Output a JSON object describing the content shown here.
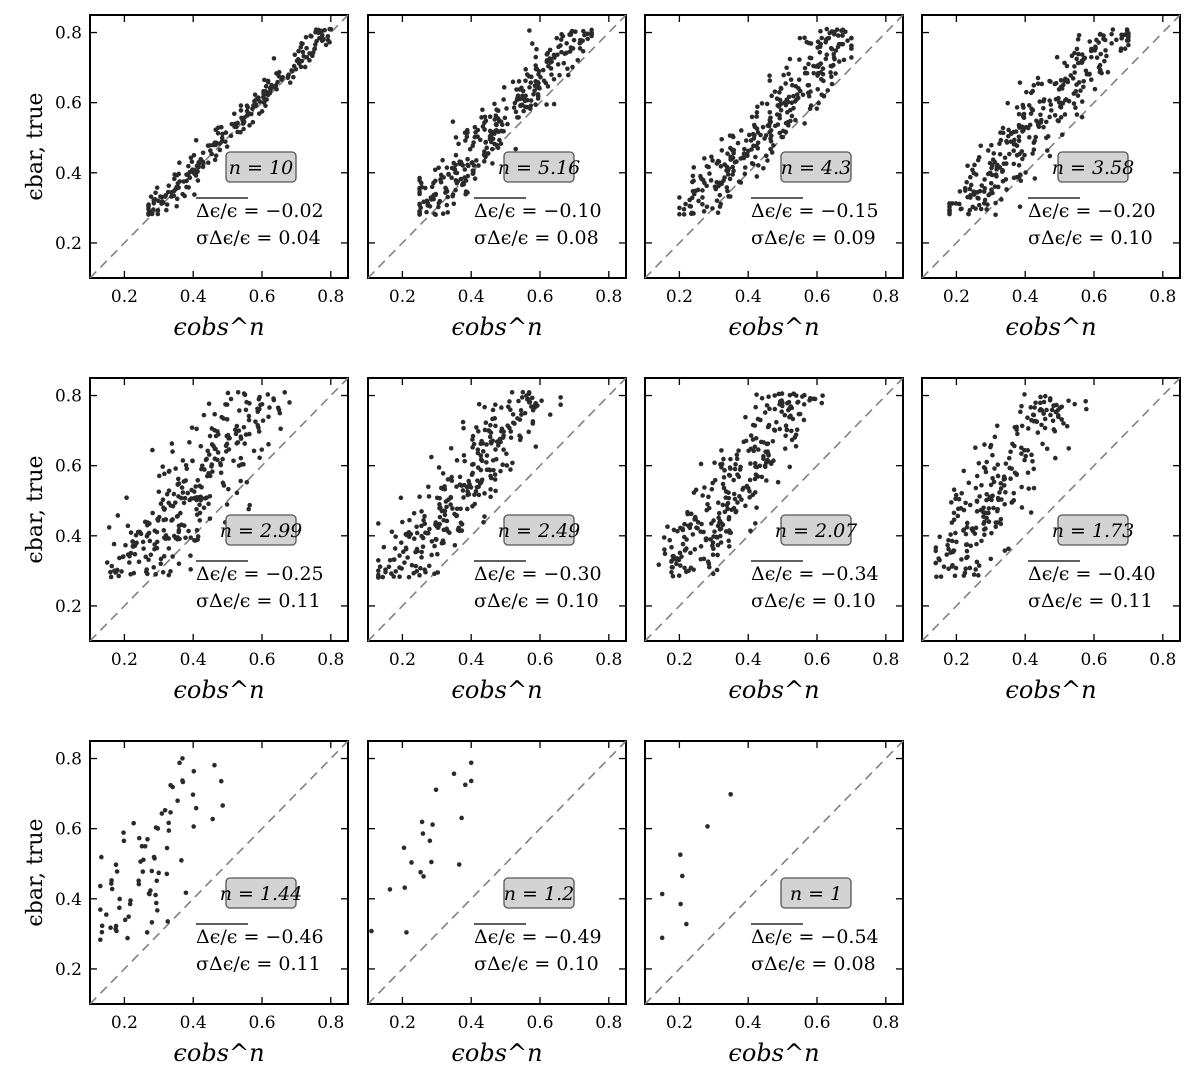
{
  "figure": {
    "y_axis_label": "ϵbar, true",
    "x_axis_label": "ϵobs^n",
    "n_label_prefix": "n =",
    "mean_label": "Δϵ/ϵ =",
    "sigma_label": "σΔϵ/ϵ =",
    "colors": {
      "points": "#2a2a2a",
      "diagonal": "#808080",
      "label_box": "#d3d3d3",
      "label_box_border": "#555555"
    }
  },
  "chart_data": [
    {
      "type": "scatter",
      "n": "10",
      "mean": "−0.02",
      "sigma": "0.04",
      "xlim": [
        0.1,
        0.85
      ],
      "ylim": [
        0.1,
        0.85
      ],
      "xticks": [
        0.2,
        0.4,
        0.6,
        0.8
      ],
      "yticks": [
        0.2,
        0.4,
        0.6,
        0.8
      ],
      "npoints": 230,
      "bias": -0.02,
      "scatter": 0.04,
      "xrange": [
        0.27,
        0.8
      ]
    },
    {
      "type": "scatter",
      "n": "5.16",
      "mean": "−0.10",
      "sigma": "0.08",
      "xlim": [
        0.1,
        0.85
      ],
      "ylim": [
        0.1,
        0.85
      ],
      "xticks": [
        0.2,
        0.4,
        0.6,
        0.8
      ],
      "yticks": [
        0.2,
        0.4,
        0.6,
        0.8
      ],
      "npoints": 300,
      "bias": -0.1,
      "scatter": 0.08,
      "xrange": [
        0.25,
        0.75
      ]
    },
    {
      "type": "scatter",
      "n": "4.3",
      "mean": "−0.15",
      "sigma": "0.09",
      "xlim": [
        0.1,
        0.85
      ],
      "ylim": [
        0.1,
        0.85
      ],
      "xticks": [
        0.2,
        0.4,
        0.6,
        0.8
      ],
      "yticks": [
        0.2,
        0.4,
        0.6,
        0.8
      ],
      "npoints": 300,
      "bias": -0.15,
      "scatter": 0.09,
      "xrange": [
        0.2,
        0.7
      ]
    },
    {
      "type": "scatter",
      "n": "3.58",
      "mean": "−0.20",
      "sigma": "0.10",
      "xlim": [
        0.1,
        0.85
      ],
      "ylim": [
        0.1,
        0.85
      ],
      "xticks": [
        0.2,
        0.4,
        0.6,
        0.8
      ],
      "yticks": [
        0.2,
        0.4,
        0.6,
        0.8
      ],
      "npoints": 300,
      "bias": -0.2,
      "scatter": 0.1,
      "xrange": [
        0.18,
        0.7
      ]
    },
    {
      "type": "scatter",
      "n": "2.99",
      "mean": "−0.25",
      "sigma": "0.11",
      "xlim": [
        0.1,
        0.85
      ],
      "ylim": [
        0.1,
        0.85
      ],
      "xticks": [
        0.2,
        0.4,
        0.6,
        0.8
      ],
      "yticks": [
        0.2,
        0.4,
        0.6,
        0.8
      ],
      "npoints": 290,
      "bias": -0.25,
      "scatter": 0.11,
      "xrange": [
        0.15,
        0.68
      ]
    },
    {
      "type": "scatter",
      "n": "2.49",
      "mean": "−0.30",
      "sigma": "0.10",
      "xlim": [
        0.1,
        0.85
      ],
      "ylim": [
        0.1,
        0.85
      ],
      "xticks": [
        0.2,
        0.4,
        0.6,
        0.8
      ],
      "yticks": [
        0.2,
        0.4,
        0.6,
        0.8
      ],
      "npoints": 290,
      "bias": -0.3,
      "scatter": 0.1,
      "xrange": [
        0.13,
        0.66
      ]
    },
    {
      "type": "scatter",
      "n": "2.07",
      "mean": "−0.34",
      "sigma": "0.10",
      "xlim": [
        0.1,
        0.85
      ],
      "ylim": [
        0.1,
        0.85
      ],
      "xticks": [
        0.2,
        0.4,
        0.6,
        0.8
      ],
      "yticks": [
        0.2,
        0.4,
        0.6,
        0.8
      ],
      "npoints": 280,
      "bias": -0.34,
      "scatter": 0.1,
      "xrange": [
        0.14,
        0.63
      ]
    },
    {
      "type": "scatter",
      "n": "1.73",
      "mean": "−0.40",
      "sigma": "0.11",
      "xlim": [
        0.1,
        0.85
      ],
      "ylim": [
        0.1,
        0.85
      ],
      "xticks": [
        0.2,
        0.4,
        0.6,
        0.8
      ],
      "yticks": [
        0.2,
        0.4,
        0.6,
        0.8
      ],
      "npoints": 230,
      "bias": -0.4,
      "scatter": 0.11,
      "xrange": [
        0.14,
        0.6
      ]
    },
    {
      "type": "scatter",
      "n": "1.44",
      "mean": "−0.46",
      "sigma": "0.11",
      "xlim": [
        0.1,
        0.85
      ],
      "ylim": [
        0.1,
        0.85
      ],
      "xticks": [
        0.2,
        0.4,
        0.6,
        0.8
      ],
      "yticks": [
        0.2,
        0.4,
        0.6,
        0.8
      ],
      "npoints": 75,
      "bias": -0.46,
      "scatter": 0.11,
      "xrange": [
        0.13,
        0.52
      ]
    },
    {
      "type": "scatter",
      "n": "1.2",
      "mean": "−0.49",
      "sigma": "0.10",
      "xlim": [
        0.1,
        0.85
      ],
      "ylim": [
        0.1,
        0.85
      ],
      "xticks": [
        0.2,
        0.4,
        0.6,
        0.8
      ],
      "yticks": [
        0.2,
        0.4,
        0.6,
        0.8
      ],
      "npoints": 20,
      "bias": -0.49,
      "scatter": 0.1,
      "xrange": [
        0.11,
        0.4
      ]
    },
    {
      "type": "scatter",
      "n": "1",
      "mean": "−0.54",
      "sigma": "0.08",
      "xlim": [
        0.1,
        0.85
      ],
      "ylim": [
        0.1,
        0.85
      ],
      "xticks": [
        0.2,
        0.4,
        0.6,
        0.8
      ],
      "yticks": [
        0.2,
        0.4,
        0.6,
        0.8
      ],
      "npoints": 8,
      "bias": -0.54,
      "scatter": 0.08,
      "xrange": [
        0.15,
        0.36
      ]
    }
  ]
}
